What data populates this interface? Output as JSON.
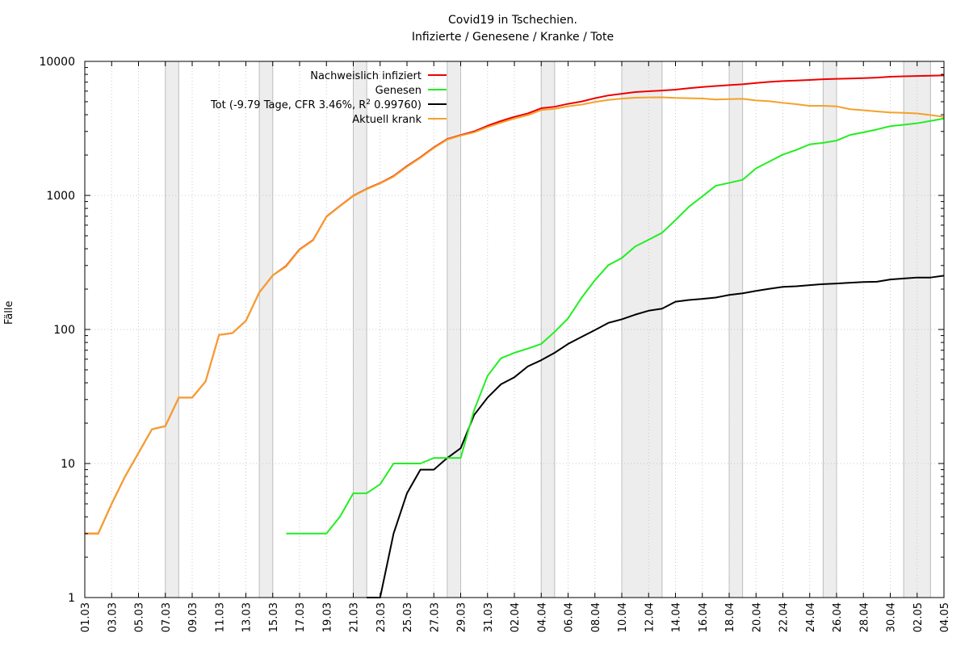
{
  "chart_data": {
    "type": "line",
    "title_line1": "Covid19 in Tschechien.",
    "title_line2": "Infizierte / Genesene / Kranke / Tote",
    "xlabel": "",
    "ylabel": "Fälle",
    "yscale": "log",
    "ylim": [
      1,
      10000
    ],
    "y_ticks": [
      "1",
      "10",
      "100",
      "1000",
      "10000"
    ],
    "x": [
      "01.03",
      "02.03",
      "03.03",
      "04.03",
      "05.03",
      "06.03",
      "07.03",
      "08.03",
      "09.03",
      "10.03",
      "11.03",
      "12.03",
      "13.03",
      "14.03",
      "15.03",
      "16.03",
      "17.03",
      "18.03",
      "19.03",
      "20.03",
      "21.03",
      "22.03",
      "23.03",
      "24.03",
      "25.03",
      "26.03",
      "27.03",
      "28.03",
      "29.03",
      "30.03",
      "31.03",
      "01.04",
      "02.04",
      "03.04",
      "04.04",
      "05.04",
      "06.04",
      "07.04",
      "08.04",
      "09.04",
      "10.04",
      "11.04",
      "12.04",
      "13.04",
      "14.04",
      "15.04",
      "16.04",
      "17.04",
      "18.04",
      "19.04",
      "20.04",
      "21.04",
      "22.04",
      "23.04",
      "24.04",
      "25.04",
      "26.04",
      "27.04",
      "28.04",
      "29.04",
      "30.04",
      "01.05",
      "02.05",
      "03.05",
      "04.05"
    ],
    "x_tick_labels": [
      "01.03",
      "03.03",
      "05.03",
      "07.03",
      "09.03",
      "11.03",
      "13.03",
      "15.03",
      "17.03",
      "19.03",
      "21.03",
      "23.03",
      "25.03",
      "27.03",
      "29.03",
      "31.03",
      "02.04",
      "04.04",
      "06.04",
      "08.04",
      "10.04",
      "12.04",
      "14.04",
      "16.04",
      "18.04",
      "20.04",
      "22.04",
      "24.04",
      "26.04",
      "28.04",
      "30.04",
      "02.05",
      "04.05"
    ],
    "shaded_weekends": [
      [
        "07.03",
        "08.03"
      ],
      [
        "14.03",
        "15.03"
      ],
      [
        "21.03",
        "22.03"
      ],
      [
        "28.03",
        "29.03"
      ],
      [
        "04.04",
        "05.04"
      ],
      [
        "10.04",
        "13.04"
      ],
      [
        "18.04",
        "19.04"
      ],
      [
        "25.04",
        "26.04"
      ],
      [
        "01.05",
        "03.05"
      ]
    ],
    "grid": true,
    "legend_position": "top-left",
    "series": [
      {
        "name": "Nachweislich infiziert",
        "color": "#ee0000",
        "y": [
          3,
          3,
          5,
          8,
          12,
          18,
          19,
          31,
          31,
          41,
          91,
          94,
          116,
          189,
          253,
          298,
          396,
          464,
          694,
          833,
          995,
          1120,
          1236,
          1394,
          1654,
          1925,
          2279,
          2631,
          2817,
          3001,
          3308,
          3589,
          3858,
          4091,
          4472,
          4587,
          4822,
          5017,
          5312,
          5569,
          5732,
          5902,
          5991,
          6059,
          6151,
          6301,
          6433,
          6549,
          6654,
          6746,
          6900,
          7033,
          7132,
          7187,
          7273,
          7352,
          7404,
          7445,
          7504,
          7563,
          7682,
          7737,
          7781,
          7819,
          7852
        ]
      },
      {
        "name": "Genesen",
        "color": "#22ee22",
        "y": [
          null,
          null,
          null,
          null,
          null,
          null,
          null,
          null,
          null,
          null,
          null,
          null,
          null,
          null,
          null,
          3,
          3,
          3,
          3,
          4,
          6,
          6,
          7,
          10,
          10,
          10,
          11,
          11,
          11,
          25,
          45,
          61,
          67,
          72,
          78,
          96,
          121,
          172,
          233,
          302,
          341,
          416,
          467,
          526,
          655,
          823,
          983,
          1180,
          1241,
          1307,
          1592,
          1791,
          2016,
          2183,
          2404,
          2467,
          2565,
          2826,
          2955,
          3104,
          3286,
          3364,
          3452,
          3597,
          3746
        ]
      },
      {
        "name": "Tot (-9.79 Tage, CFR 3.46%, R² 0.99760)",
        "color": "#000000",
        "y": [
          null,
          null,
          null,
          null,
          null,
          null,
          null,
          null,
          null,
          null,
          null,
          null,
          null,
          null,
          null,
          null,
          null,
          null,
          null,
          null,
          null,
          1,
          1,
          3,
          6,
          9,
          9,
          11,
          13,
          23,
          31,
          39,
          44,
          53,
          59,
          67,
          78,
          88,
          99,
          112,
          119,
          129,
          138,
          143,
          161,
          166,
          169,
          173,
          181,
          186,
          194,
          201,
          208,
          210,
          214,
          218,
          220,
          223,
          226,
          227,
          236,
          240,
          244,
          244,
          252
        ]
      },
      {
        "name": "Aktuell krank",
        "color": "#f5a02a",
        "y": [
          3,
          3,
          5,
          8,
          12,
          18,
          19,
          31,
          31,
          41,
          91,
          94,
          116,
          189,
          253,
          295,
          393,
          461,
          691,
          829,
          989,
          1113,
          1228,
          1381,
          1638,
          1906,
          2257,
          2609,
          2793,
          2953,
          3232,
          3489,
          3747,
          3966,
          4335,
          4424,
          4623,
          4757,
          4980,
          5155,
          5272,
          5357,
          5386,
          5390,
          5335,
          5312,
          5281,
          5196,
          5232,
          5253,
          5114,
          5041,
          4908,
          4794,
          4655,
          4667,
          4619,
          4396,
          4323,
          4232,
          4160,
          4133,
          4085,
          3978,
          3854
        ]
      }
    ],
    "legend_labels": {
      "s0": "Nachweislich infiziert",
      "s1": "Genesen",
      "s2": "Tot (-9.79 Tage, CFR 3.46%, R",
      "s2_sup": "2",
      "s2_tail": " 0.99760)",
      "s3": "Aktuell krank"
    }
  }
}
